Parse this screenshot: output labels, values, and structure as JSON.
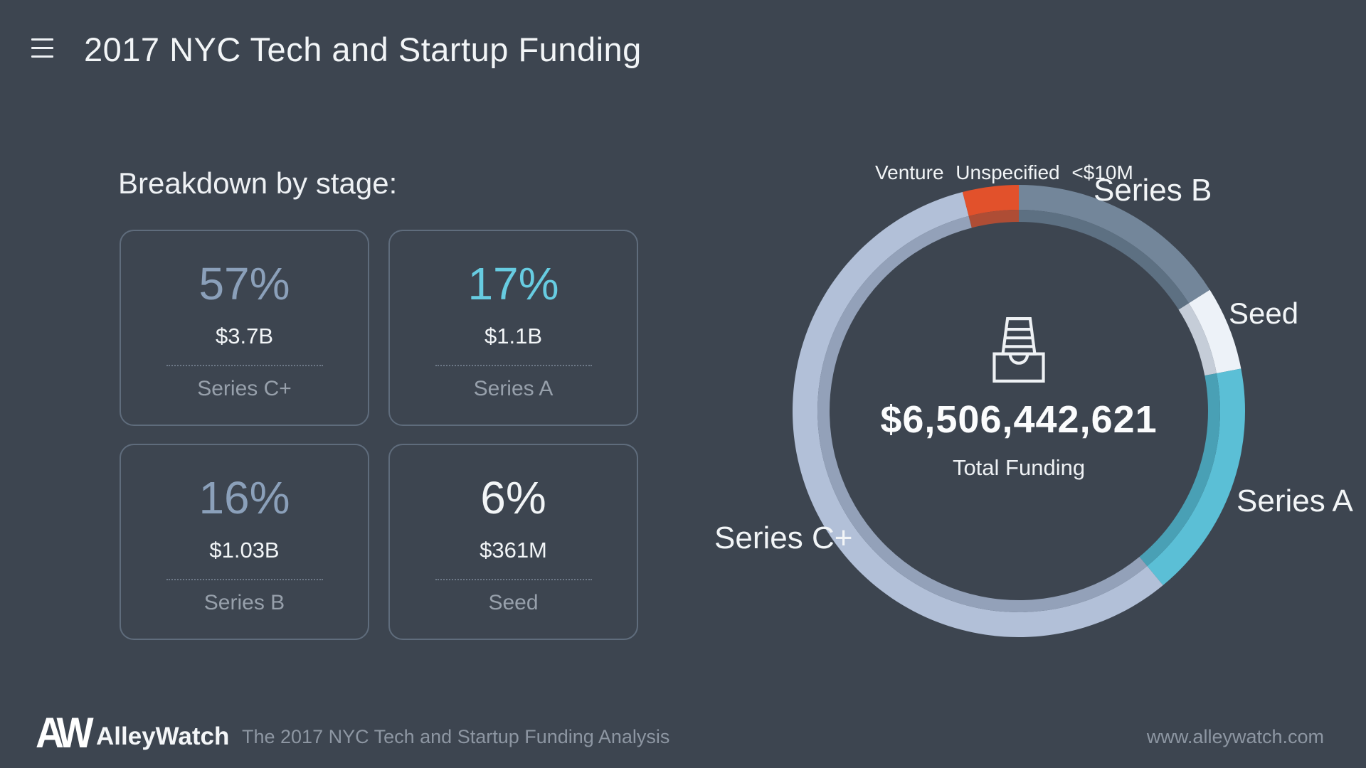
{
  "header": {
    "title": "2017 NYC Tech and Startup Funding"
  },
  "breakdown": {
    "heading": "Breakdown by stage:",
    "cards": [
      {
        "pct": "57%",
        "amount": "$3.7B",
        "label": "Series C+",
        "pct_color": "#8ba0ba"
      },
      {
        "pct": "17%",
        "amount": "$1.1B",
        "label": "Series A",
        "pct_color": "#67cce1"
      },
      {
        "pct": "16%",
        "amount": "$1.03B",
        "label": "Series B",
        "pct_color": "#8ba0ba"
      },
      {
        "pct": "6%",
        "amount": "$361M",
        "label": "Seed",
        "pct_color": "#f2f5f7"
      }
    ]
  },
  "chart_data": {
    "type": "pie",
    "subtype": "donut",
    "title": "2017 NYC Tech and Startup Funding by stage",
    "direction": "clockwise",
    "start_angle_deg": 0,
    "legend_position": "around-ring",
    "center_icon": "inbox-tray-icon",
    "total_value": "$6,506,442,621",
    "total_label": "Total Funding",
    "segments": [
      {
        "label": "Series B",
        "pct": 16,
        "color": "#73869a",
        "color_inner": "#5d7082"
      },
      {
        "label": "Seed",
        "pct": 6,
        "color": "#edf2f8",
        "color_inner": "#c5cdd8"
      },
      {
        "label": "Series A",
        "pct": 17,
        "color": "#5bbfd6",
        "color_inner": "#49a0b5"
      },
      {
        "label": "Series C+",
        "pct": 57,
        "color": "#b2c0d8",
        "color_inner": "#93a1b9"
      },
      {
        "label": "Venture Unspecified <$10M",
        "pct": 4,
        "color": "#e2512b",
        "color_inner": "#ae4d35"
      }
    ]
  },
  "footer": {
    "logo_monogram": "AW",
    "logo_text": "AlleyWatch",
    "tagline": "The 2017 NYC Tech and Startup Funding Analysis",
    "website": "www.alleywatch.com"
  }
}
